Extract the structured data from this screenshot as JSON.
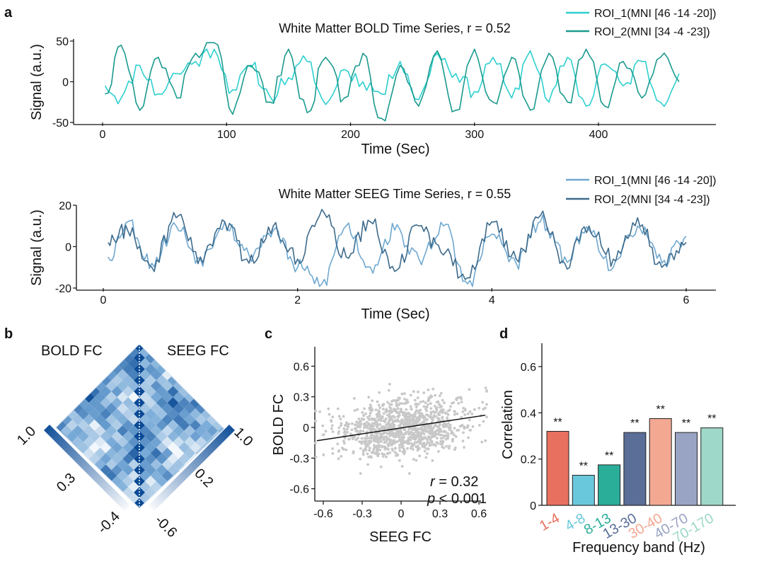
{
  "panel_labels": {
    "a": "a",
    "b": "b",
    "c": "c",
    "d": "d"
  },
  "chart_data": [
    {
      "panel": "a",
      "type": "line",
      "title": "White Matter BOLD Time Series, r = 0.52",
      "xlabel": "Time (Sec)",
      "ylabel": "Signal (a.u.)",
      "xlim": [
        0,
        470
      ],
      "ylim": [
        -50,
        50
      ],
      "xticks": [
        0,
        100,
        200,
        300,
        400
      ],
      "yticks": [
        50,
        0,
        -50
      ],
      "legend_position": "top-right",
      "series": [
        {
          "name": "ROI_1(MNI [46 -14 -20])",
          "color": "#2ecfcf",
          "x": [
            2,
            15,
            30,
            45,
            60,
            75,
            90,
            105,
            120,
            135,
            150,
            165,
            180,
            195,
            210,
            225,
            240,
            255,
            270,
            285,
            300,
            315,
            330,
            345,
            360,
            375,
            390,
            405,
            420,
            435,
            450,
            465
          ],
          "values": [
            -5,
            -20,
            20,
            -15,
            10,
            25,
            40,
            -10,
            18,
            -18,
            5,
            25,
            -28,
            15,
            0,
            -15,
            25,
            -22,
            35,
            10,
            -12,
            30,
            -20,
            38,
            -25,
            30,
            -30,
            22,
            -5,
            25,
            -25,
            10
          ]
        },
        {
          "name": "ROI_2(MNI [34 -4 -23])",
          "color": "#1a9a8e",
          "x": [
            2,
            15,
            30,
            45,
            60,
            75,
            90,
            105,
            120,
            135,
            150,
            165,
            180,
            195,
            210,
            225,
            240,
            255,
            270,
            285,
            300,
            315,
            330,
            345,
            360,
            375,
            390,
            405,
            420,
            435,
            450,
            465
          ],
          "values": [
            -15,
            45,
            -35,
            30,
            -20,
            35,
            50,
            -40,
            20,
            -25,
            40,
            -38,
            30,
            -20,
            35,
            -45,
            20,
            -30,
            38,
            -35,
            40,
            -25,
            30,
            -35,
            35,
            -25,
            40,
            -30,
            25,
            -20,
            30,
            0
          ]
        }
      ]
    },
    {
      "panel": "a2",
      "type": "line",
      "title": "White Matter SEEG Time Series, r = 0.55",
      "xlabel": "Time (Sec)",
      "ylabel": "Signal (a.u.)",
      "xlim": [
        0,
        6
      ],
      "ylim": [
        -20,
        20
      ],
      "xticks": [
        0,
        2,
        4,
        6
      ],
      "yticks": [
        20,
        0,
        -20
      ],
      "legend_position": "top-right",
      "series": [
        {
          "name": "ROI_1(MNI [46 -14 -20])",
          "color": "#6fa8d0",
          "x": [
            0.05,
            0.25,
            0.5,
            0.75,
            1.0,
            1.25,
            1.5,
            1.75,
            2.0,
            2.25,
            2.5,
            2.75,
            3.0,
            3.25,
            3.5,
            3.75,
            4.0,
            4.25,
            4.5,
            4.75,
            5.0,
            5.25,
            5.5,
            5.75,
            6.0
          ],
          "values": [
            -5,
            12,
            -8,
            10,
            -6,
            12,
            -4,
            8,
            -10,
            -18,
            10,
            -10,
            8,
            -6,
            10,
            -18,
            6,
            -8,
            12,
            -5,
            8,
            -10,
            10,
            -8,
            5
          ]
        },
        {
          "name": "ROI_2(MNI [34 -4 -23])",
          "color": "#3d6b8c",
          "x": [
            0.05,
            0.25,
            0.5,
            0.75,
            1.0,
            1.25,
            1.5,
            1.75,
            2.0,
            2.25,
            2.5,
            2.75,
            3.0,
            3.25,
            3.5,
            3.75,
            4.0,
            4.25,
            4.5,
            4.75,
            5.0,
            5.25,
            5.5,
            5.75,
            6.0
          ],
          "values": [
            2,
            8,
            -10,
            14,
            -5,
            12,
            -8,
            10,
            -6,
            18,
            -5,
            12,
            -12,
            10,
            -4,
            -15,
            12,
            -6,
            15,
            -8,
            10,
            -6,
            14,
            -10,
            2
          ]
        }
      ]
    },
    {
      "panel": "b",
      "type": "heatmap",
      "left_label": "BOLD FC",
      "right_label": "SEEG FC",
      "colorbars": [
        {
          "side": "left",
          "max_label": "1.0",
          "mid_label": "0.3",
          "min_label": "-0.4"
        },
        {
          "side": "right",
          "max_label": "1.0",
          "mid_label": "0.2",
          "min_label": "-0.6"
        }
      ],
      "colors": {
        "low": "#ffffff",
        "high": "#0a4a96"
      }
    },
    {
      "panel": "c",
      "type": "scatter",
      "xlabel": "SEEG FC",
      "ylabel": "BOLD FC",
      "xlim": [
        -0.7,
        0.7
      ],
      "ylim": [
        -0.7,
        0.7
      ],
      "xticks": [
        "-0.6",
        "-0.3",
        "0",
        "0.3",
        "0.6"
      ],
      "yticks": [
        "0.6",
        "0.3",
        "0",
        "-0.3",
        "-0.6"
      ],
      "fit_line": {
        "x": [
          -0.65,
          0.65
        ],
        "y": [
          -0.13,
          0.12
        ]
      },
      "annotation_r": {
        "italic": "r",
        "rest": " = 0.32"
      },
      "annotation_p": {
        "italic": "p",
        "rest": " < 0.001"
      },
      "point_color": "#c8c8c8"
    },
    {
      "panel": "d",
      "type": "bar",
      "xlabel": "Frequency band (Hz)",
      "ylabel": "Correlation",
      "ylim": [
        0,
        0.7
      ],
      "yticks": [
        "0",
        "0.2",
        "0.4",
        "0.6"
      ],
      "categories": [
        "1-4",
        "4-8",
        "8-13",
        "13-30",
        "30-40",
        "40-70",
        "70-170"
      ],
      "values": [
        0.32,
        0.13,
        0.175,
        0.315,
        0.375,
        0.315,
        0.335
      ],
      "significance": [
        "**",
        "**",
        "**",
        "**",
        "**",
        "**",
        "**"
      ],
      "colors": [
        "#e8705e",
        "#6ac8dc",
        "#2aae9a",
        "#5a6e98",
        "#f3a892",
        "#99a4c4",
        "#9ed8c8"
      ]
    }
  ]
}
